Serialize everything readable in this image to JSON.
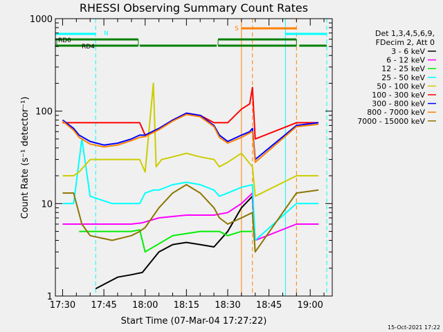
{
  "chart_data": {
    "type": "line",
    "title": "RHESSI Observing Summary Count Rates",
    "xlabel": "Start Time (07-Mar-04 17:27:22)",
    "ylabel": "Count Rate (s⁻¹ detector⁻¹)",
    "y_scale": "log",
    "ylim": [
      1,
      1000
    ],
    "xlim": [
      "17:27:22",
      "19:08:00"
    ],
    "x_ticks": [
      "17:30",
      "17:45",
      "18:00",
      "18:15",
      "18:30",
      "18:45",
      "19:00"
    ],
    "y_ticks": [
      "1",
      "10",
      "100",
      "1000"
    ],
    "legend": {
      "position": "right",
      "header": [
        "Det 1,3,4,5,6,9,",
        "FDecim 2, Att 0"
      ],
      "entries": [
        "3 - 6 keV",
        "6 - 12 keV",
        "12 - 25 keV",
        "25 - 50 keV",
        "50 - 100 keV",
        "100 - 300 keV",
        "300 - 800 keV",
        "800 - 7000 keV",
        "7000 - 15000 keV"
      ]
    },
    "series": [
      {
        "name": "3 - 6 keV",
        "color": "#000000",
        "x": [
          "17:42",
          "17:50",
          "17:55",
          "17:59",
          "18:05",
          "18:10",
          "18:15",
          "18:20",
          "18:25",
          "18:30",
          "18:35",
          "18:39",
          "18:40"
        ],
        "values": [
          1.2,
          1.6,
          1.7,
          1.8,
          3.0,
          3.6,
          3.8,
          3.6,
          3.4,
          5.0,
          9.0,
          12.0,
          4.0
        ]
      },
      {
        "name": "6 - 12 keV",
        "color": "#ff00ff",
        "x": [
          "17:30",
          "17:40",
          "17:55",
          "17:59",
          "18:05",
          "18:15",
          "18:25",
          "18:30",
          "18:35",
          "18:39",
          "18:40",
          "18:55",
          "19:03"
        ],
        "values": [
          6.0,
          6.0,
          6.0,
          6.2,
          7.0,
          7.5,
          7.5,
          8.0,
          10.0,
          13.0,
          4.0,
          6.0,
          6.0
        ]
      },
      {
        "name": "12 - 25 keV",
        "color": "#00ee00",
        "x": [
          "17:36",
          "17:45",
          "17:55",
          "17:58",
          "18:00",
          "18:10",
          "18:20",
          "18:27",
          "18:30",
          "18:35",
          "18:39"
        ],
        "values": [
          5.0,
          5.0,
          5.0,
          5.2,
          3.0,
          4.5,
          5.0,
          5.0,
          4.5,
          5.0,
          5.0
        ]
      },
      {
        "name": "25 - 50 keV",
        "color": "#00ffff",
        "x": [
          "17:30",
          "17:34",
          "17:37",
          "17:40",
          "17:48",
          "17:55",
          "17:58",
          "18:00",
          "18:03",
          "18:05",
          "18:10",
          "18:15",
          "18:20",
          "18:25",
          "18:27",
          "18:30",
          "18:35",
          "18:39",
          "18:40",
          "18:55",
          "19:03"
        ],
        "values": [
          10.0,
          10.0,
          50.0,
          12.0,
          10.0,
          10.0,
          10.0,
          13.0,
          14.0,
          14.0,
          16.0,
          17.0,
          16.0,
          14.0,
          12.0,
          13.0,
          15.0,
          16.0,
          4.0,
          10.0,
          10.0
        ]
      },
      {
        "name": "50 - 100 keV",
        "color": "#cccc00",
        "x": [
          "17:30",
          "17:34",
          "17:36",
          "17:40",
          "17:48",
          "17:55",
          "17:58",
          "18:00",
          "18:03",
          "18:04",
          "18:06",
          "18:10",
          "18:15",
          "18:20",
          "18:25",
          "18:27",
          "18:30",
          "18:35",
          "18:39",
          "18:40",
          "18:55",
          "19:03"
        ],
        "values": [
          20.0,
          20.0,
          22.0,
          30.0,
          30.0,
          30.0,
          30.0,
          22.0,
          200.0,
          25.0,
          30.0,
          32.0,
          35.0,
          32.0,
          30.0,
          25.0,
          28.0,
          35.0,
          25.0,
          12.0,
          20.0,
          20.0
        ]
      },
      {
        "name": "100 - 300 keV",
        "color": "#ff0000",
        "x": [
          "17:30",
          "17:34",
          "17:36",
          "17:40",
          "17:48",
          "17:55",
          "17:58",
          "18:00",
          "18:05",
          "18:10",
          "18:15",
          "18:20",
          "18:25",
          "18:27",
          "18:30",
          "18:35",
          "18:38",
          "18:39",
          "18:40",
          "18:55",
          "19:03"
        ],
        "values": [
          75.0,
          75.0,
          75.0,
          75.0,
          75.0,
          75.0,
          75.0,
          55.0,
          65.0,
          80.0,
          95.0,
          90.0,
          75.0,
          75.0,
          75.0,
          105.0,
          120.0,
          180.0,
          50.0,
          75.0,
          75.0
        ]
      },
      {
        "name": "300 - 800 keV",
        "color": "#0000ff",
        "x": [
          "17:30",
          "17:34",
          "17:36",
          "17:40",
          "17:45",
          "17:50",
          "17:55",
          "17:58",
          "18:00",
          "18:05",
          "18:10",
          "18:15",
          "18:20",
          "18:25",
          "18:27",
          "18:30",
          "18:35",
          "18:38",
          "18:39",
          "18:40",
          "18:55",
          "19:03"
        ],
        "values": [
          80.0,
          65.0,
          55.0,
          47.0,
          43.0,
          45.0,
          50.0,
          55.0,
          55.0,
          65.0,
          80.0,
          95.0,
          90.0,
          70.0,
          55.0,
          47.0,
          55.0,
          60.0,
          65.0,
          30.0,
          70.0,
          75.0
        ]
      },
      {
        "name": "800 - 7000 keV",
        "color": "#ff8000",
        "x": [
          "17:30",
          "17:34",
          "17:36",
          "17:40",
          "17:45",
          "17:50",
          "17:55",
          "17:58",
          "18:00",
          "18:05",
          "18:10",
          "18:15",
          "18:20",
          "18:25",
          "18:27",
          "18:30",
          "18:35",
          "18:38",
          "18:39",
          "18:40",
          "18:55",
          "19:03"
        ],
        "values": [
          78.0,
          62.0,
          52.0,
          44.0,
          41.0,
          43.0,
          48.0,
          52.0,
          53.0,
          63.0,
          78.0,
          92.0,
          87.0,
          68.0,
          52.0,
          45.0,
          52.0,
          58.0,
          60.0,
          28.0,
          68.0,
          72.0
        ]
      },
      {
        "name": "7000 - 15000 keV",
        "color": "#8b7500",
        "x": [
          "17:30",
          "17:34",
          "17:37",
          "17:40",
          "17:48",
          "17:55",
          "17:58",
          "18:00",
          "18:05",
          "18:10",
          "18:15",
          "18:20",
          "18:25",
          "18:27",
          "18:30",
          "18:35",
          "18:39",
          "18:40",
          "18:55",
          "19:03"
        ],
        "values": [
          13.0,
          13.0,
          6.0,
          4.5,
          4.0,
          4.5,
          5.0,
          5.5,
          9.0,
          13.0,
          16.0,
          13.0,
          9.0,
          7.0,
          6.0,
          7.0,
          8.0,
          3.0,
          13.0,
          14.0
        ]
      }
    ],
    "attenuator_bars": [
      {
        "label": "RD0",
        "color": "#008000",
        "segments": [
          [
            "17:27:22",
            "17:57:30"
          ],
          [
            "18:26:30",
            "18:55:00"
          ]
        ]
      },
      {
        "label": "RD4",
        "color": "#008000",
        "segments": [
          [
            "17:27:22",
            "17:57:30"
          ],
          [
            "17:58:00",
            "18:26:00"
          ],
          [
            "18:26:30",
            "18:55:00"
          ],
          [
            "18:56:00",
            "19:06:00"
          ]
        ]
      },
      {
        "label": "N",
        "color": "#00ffff",
        "segments": [
          [
            "17:27:22",
            "17:42:00"
          ],
          [
            "18:51:00",
            "19:06:00"
          ]
        ]
      },
      {
        "label": "S",
        "color": "#ff8000",
        "segments": [
          [
            "18:35:00",
            "18:55:00"
          ]
        ]
      }
    ],
    "vlines": [
      {
        "x": "17:27:22",
        "color": "#00ffff",
        "style": "solid"
      },
      {
        "x": "17:42:00",
        "color": "#00ffff",
        "style": "dashed"
      },
      {
        "x": "18:35:00",
        "color": "#ff8000",
        "style": "solid"
      },
      {
        "x": "18:39:00",
        "color": "#ff8000",
        "style": "dashed"
      },
      {
        "x": "18:51:00",
        "color": "#00ffff",
        "style": "solid"
      },
      {
        "x": "18:55:00",
        "color": "#ff8000",
        "style": "dashed"
      },
      {
        "x": "19:06:00",
        "color": "#00ffff",
        "style": "dashed"
      }
    ]
  },
  "footer": {
    "timestamp": "15-Oct-2021 17:22"
  }
}
